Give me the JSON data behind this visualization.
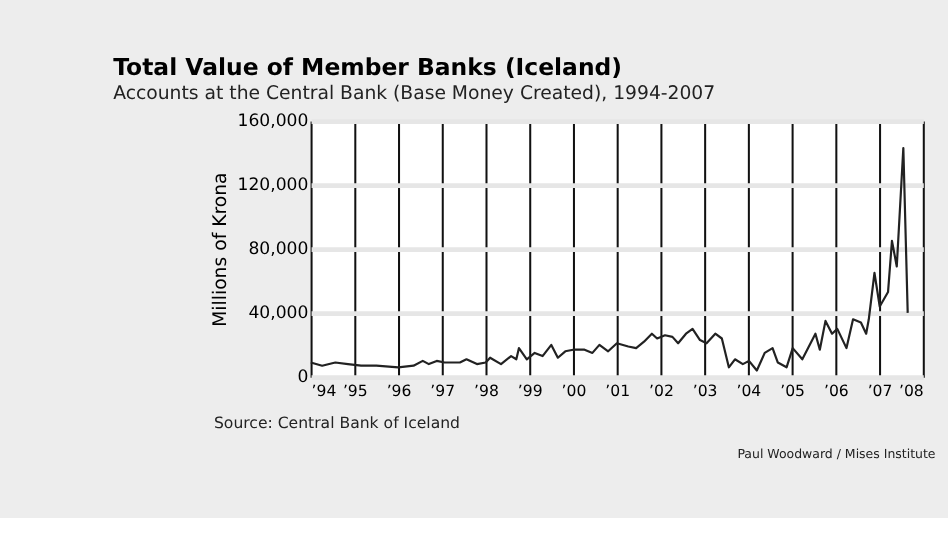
{
  "chart_data": {
    "type": "line",
    "title": "Total Value of Member Banks (Iceland)",
    "subtitle": "Accounts at the Central Bank (Base Money Created), 1994-2007",
    "ylabel": "Millions of Krona",
    "x": [
      1994.0,
      1994.26,
      1994.56,
      1994.85,
      1995.15,
      1995.5,
      1996.0,
      1996.35,
      1996.56,
      1996.7,
      1996.88,
      1997.06,
      1997.41,
      1997.56,
      1997.8,
      1998.0,
      1998.1,
      1998.35,
      1998.58,
      1998.7,
      1998.76,
      1998.94,
      1999.12,
      1999.3,
      1999.5,
      1999.65,
      1999.82,
      2000.0,
      2000.26,
      2000.44,
      2000.6,
      2000.8,
      2001.0,
      2001.26,
      2001.44,
      2001.62,
      2001.8,
      2001.92,
      2002.1,
      2002.27,
      2002.4,
      2002.58,
      2002.73,
      2002.9,
      2003.05,
      2003.25,
      2003.4,
      2003.56,
      2003.7,
      2003.88,
      2004.02,
      2004.2,
      2004.38,
      2004.56,
      2004.68,
      2004.88,
      2005.02,
      2005.24,
      2005.54,
      2005.64,
      2005.77,
      2005.92,
      2006.04,
      2006.25,
      2006.4,
      2006.58,
      2006.7,
      2006.76,
      2006.89,
      2007.01,
      2007.2,
      2007.29,
      2007.4,
      2007.55,
      2007.65
    ],
    "series": [
      {
        "color": "#222222",
        "values": [
          9000,
          7000,
          9000,
          8000,
          7000,
          7000,
          6000,
          7000,
          10000,
          8000,
          10000,
          9000,
          9000,
          11000,
          8000,
          9000,
          12000,
          8000,
          13000,
          11000,
          18000,
          11000,
          15000,
          13000,
          20000,
          12000,
          16000,
          17000,
          17000,
          15000,
          20000,
          16000,
          21000,
          19000,
          18000,
          22000,
          27000,
          24000,
          26000,
          25000,
          21000,
          27000,
          30000,
          23000,
          21000,
          27000,
          24000,
          6000,
          11000,
          8000,
          10000,
          4000,
          15000,
          18000,
          9000,
          6000,
          18000,
          11000,
          27000,
          17000,
          35000,
          27000,
          30000,
          18000,
          36000,
          34000,
          27000,
          36000,
          65000,
          44000,
          53000,
          85000,
          69000,
          143000,
          40000
        ]
      }
    ],
    "xlim": [
      1994,
      2008
    ],
    "xticks": [
      {
        "value": 1994,
        "label": "’94"
      },
      {
        "value": 1995,
        "label": "’95"
      },
      {
        "value": 1996,
        "label": "’96"
      },
      {
        "value": 1997,
        "label": "’97"
      },
      {
        "value": 1998,
        "label": "’98"
      },
      {
        "value": 1999,
        "label": "’99"
      },
      {
        "value": 2000,
        "label": "’00"
      },
      {
        "value": 2001,
        "label": "’01"
      },
      {
        "value": 2002,
        "label": "’02"
      },
      {
        "value": 2003,
        "label": "’03"
      },
      {
        "value": 2004,
        "label": "’04"
      },
      {
        "value": 2005,
        "label": "’05"
      },
      {
        "value": 2006,
        "label": "’06"
      },
      {
        "value": 2007,
        "label": "’07"
      },
      {
        "value": 2008,
        "label": "’08"
      }
    ],
    "ylim": [
      0,
      160000
    ],
    "yticks": [
      0,
      {
        "value": 40000,
        "label": "40,000"
      },
      {
        "value": 80000,
        "label": "80,000"
      },
      {
        "value": 120000,
        "label": "120,000"
      },
      {
        "value": 160000,
        "label": "160,000"
      }
    ],
    "grid": true,
    "annotations": [
      "Source: Central Bank of Iceland",
      "Paul Woodward / Mises Institute"
    ]
  }
}
